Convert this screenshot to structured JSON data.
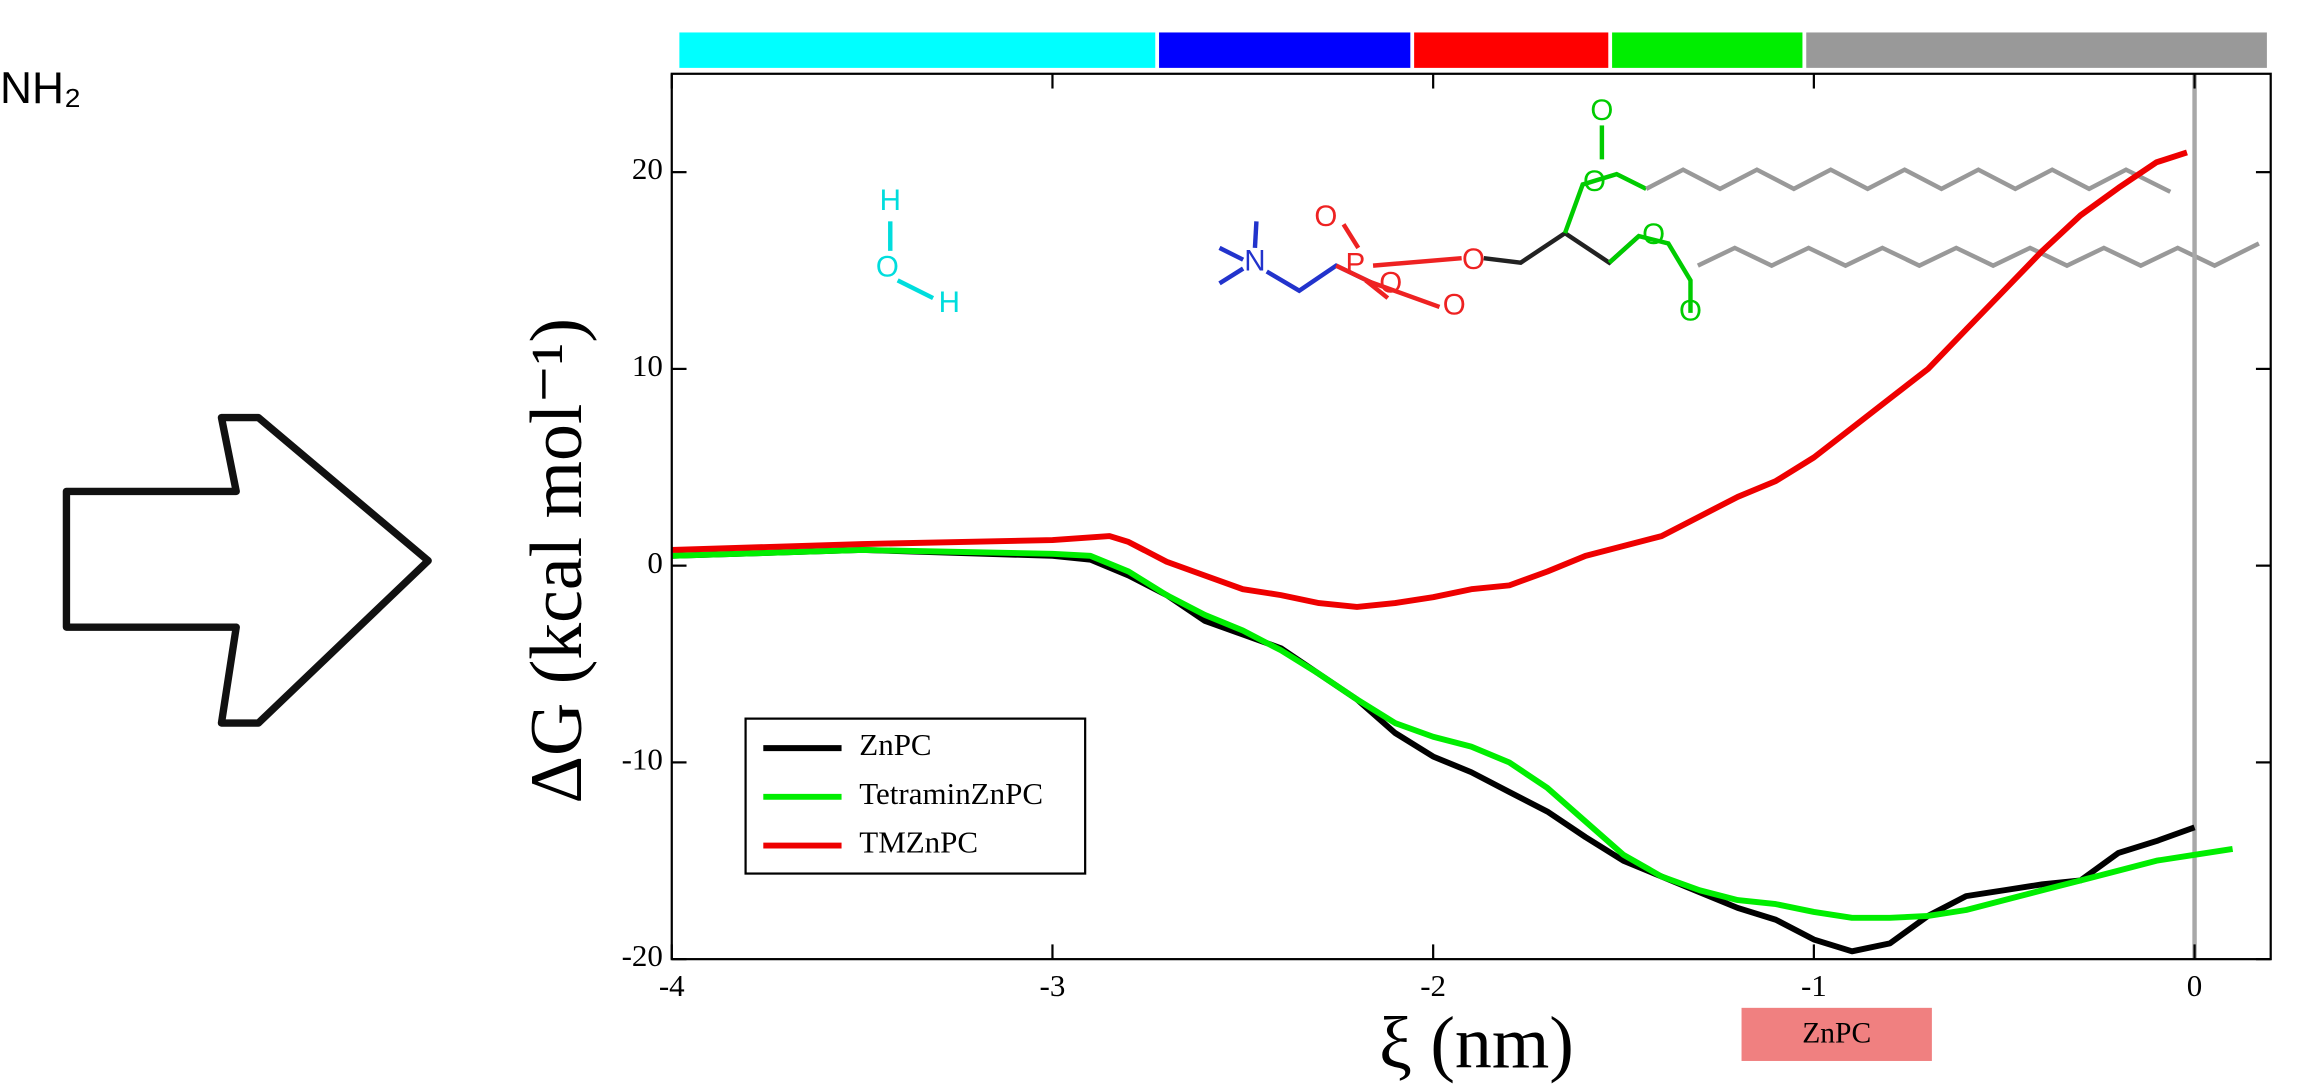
{
  "left_label": "NH₂",
  "structure_labels": [
    "H",
    "O",
    "H",
    "N",
    "O",
    "P",
    "O",
    "O",
    "O",
    "O",
    "O",
    "O",
    "O"
  ],
  "chart_data": {
    "type": "line",
    "xlabel": "ξ (nm)",
    "ylabel": "ΔG (kcal mol⁻¹)",
    "xlim": [
      -4,
      0.2
    ],
    "ylim": [
      -20,
      25
    ],
    "xticks": [
      -4,
      -3,
      -2,
      -1,
      0
    ],
    "yticks": [
      -20,
      -10,
      0,
      10,
      20
    ],
    "legend_loc": "lower left",
    "vline": {
      "x": 0,
      "color": "#a8a8a8"
    },
    "regions": [
      {
        "start": -3.98,
        "end": -2.73,
        "color": "#00ffff"
      },
      {
        "start": -2.72,
        "end": -2.06,
        "color": "#0000ff"
      },
      {
        "start": -2.05,
        "end": -1.54,
        "color": "#ff0000"
      },
      {
        "start": -1.53,
        "end": -1.03,
        "color": "#00ee00"
      },
      {
        "start": -1.02,
        "end": 0.19,
        "color": "#999999"
      }
    ],
    "annotations": [
      {
        "text": "ZnPC",
        "xrange": [
          -1.19,
          -0.69
        ],
        "color": "#f08080"
      }
    ],
    "series": [
      {
        "name": "ZnPC",
        "color": "#000000",
        "x": [
          -4,
          -3.5,
          -3.0,
          -2.9,
          -2.8,
          -2.7,
          -2.6,
          -2.5,
          -2.4,
          -2.3,
          -2.2,
          -2.1,
          -2.0,
          -1.9,
          -1.8,
          -1.7,
          -1.6,
          -1.5,
          -1.4,
          -1.3,
          -1.2,
          -1.1,
          -1.0,
          -0.9,
          -0.8,
          -0.7,
          -0.6,
          -0.5,
          -0.4,
          -0.3,
          -0.2,
          -0.1,
          0.0
        ],
        "values": [
          0.5,
          0.8,
          0.5,
          0.3,
          -0.5,
          -1.5,
          -2.8,
          -3.5,
          -4.2,
          -5.5,
          -6.8,
          -8.5,
          -9.7,
          -10.5,
          -11.5,
          -12.5,
          -13.8,
          -15,
          -15.8,
          -16.6,
          -17.4,
          -18,
          -19,
          -19.6,
          -19.2,
          -17.8,
          -16.8,
          -16.5,
          -16.2,
          -16,
          -14.6,
          -14,
          -13.3
        ]
      },
      {
        "name": "TetraminZnPC",
        "color": "#00ee00",
        "x": [
          -4,
          -3.5,
          -3.0,
          -2.9,
          -2.8,
          -2.7,
          -2.6,
          -2.5,
          -2.4,
          -2.3,
          -2.2,
          -2.1,
          -2.0,
          -1.9,
          -1.8,
          -1.7,
          -1.6,
          -1.5,
          -1.4,
          -1.3,
          -1.2,
          -1.1,
          -1.0,
          -0.9,
          -0.8,
          -0.7,
          -0.6,
          -0.5,
          -0.4,
          -0.3,
          -0.2,
          -0.1,
          0.0,
          0.1
        ],
        "values": [
          0.5,
          0.8,
          0.6,
          0.5,
          -0.3,
          -1.5,
          -2.5,
          -3.3,
          -4.3,
          -5.5,
          -6.8,
          -8,
          -8.7,
          -9.2,
          -10.0,
          -11.3,
          -13,
          -14.7,
          -15.8,
          -16.5,
          -17,
          -17.2,
          -17.6,
          -17.9,
          -17.9,
          -17.8,
          -17.5,
          -17,
          -16.5,
          -16,
          -15.5,
          -15,
          -14.7,
          -14.4
        ]
      },
      {
        "name": "TMZnPC",
        "color": "#ee0000",
        "x": [
          -4,
          -3.5,
          -3.0,
          -2.85,
          -2.8,
          -2.7,
          -2.6,
          -2.5,
          -2.4,
          -2.3,
          -2.2,
          -2.1,
          -2.0,
          -1.9,
          -1.8,
          -1.7,
          -1.6,
          -1.5,
          -1.4,
          -1.3,
          -1.2,
          -1.1,
          -1.0,
          -0.9,
          -0.8,
          -0.7,
          -0.6,
          -0.5,
          -0.4,
          -0.3,
          -0.2,
          -0.1,
          -0.02
        ],
        "values": [
          0.8,
          1.1,
          1.3,
          1.5,
          1.2,
          0.2,
          -0.5,
          -1.2,
          -1.5,
          -1.9,
          -2.1,
          -1.9,
          -1.6,
          -1.2,
          -1,
          -0.3,
          0.5,
          1,
          1.5,
          2.5,
          3.5,
          4.3,
          5.5,
          7,
          8.5,
          10,
          12,
          14,
          16,
          17.8,
          19.2,
          20.5,
          21
        ]
      }
    ]
  }
}
